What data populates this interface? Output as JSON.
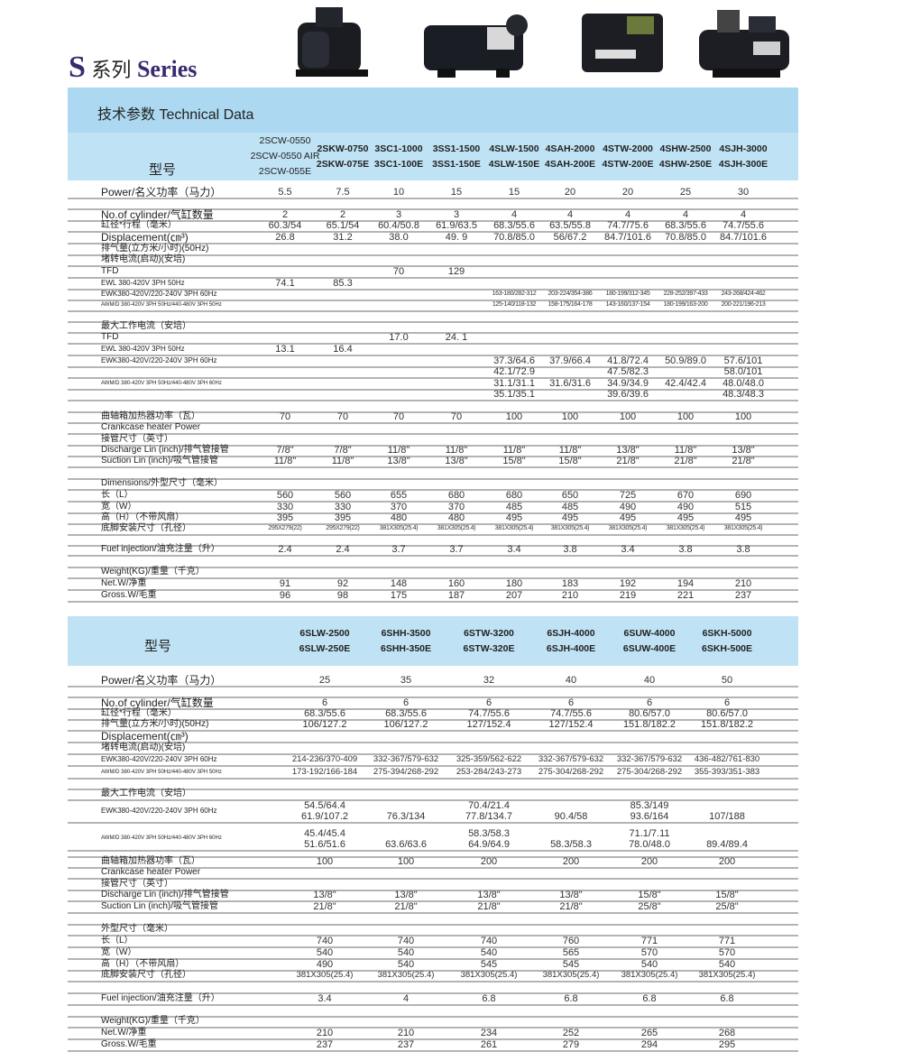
{
  "header": {
    "series_letter": "S",
    "series_cn": "系列",
    "series_en": "Series",
    "tech_data": "技术参数  Technical Data"
  },
  "images": [
    "compressor-1",
    "compressor-2",
    "compressor-3",
    "compressor-4"
  ],
  "colors": {
    "band": "#acd9f1",
    "title": "#3a2a6e"
  },
  "table1": {
    "model_label": "型号",
    "models": [
      "2SCW-0550\n2SCW-0550 AIR\n2SCW-055E",
      "2SKW-0750\n2SKW-075E",
      "3SC1-1000\n3SC1-100E",
      "3SS1-1500\n3SS1-150E",
      "4SLW-1500\n4SLW-150E",
      "4SAH-2000\n4SAH-200E",
      "4STW-2000\n4STW-200E",
      "4SHW-2500\n4SHW-250E",
      "4SJH-3000\n4SJH-300E"
    ],
    "rows": [
      {
        "label": "Power/名义功率（马力）",
        "values": [
          "5.5",
          "7.5",
          "10",
          "15",
          "15",
          "20",
          "20",
          "25",
          "30"
        ]
      },
      {
        "label": "",
        "values": []
      },
      {
        "label": "No.of cylinder/气缸数量",
        "values": [
          "2",
          "2",
          "3",
          "3",
          "4",
          "4",
          "4",
          "4",
          "4"
        ]
      },
      {
        "label": "缸径*行程（毫米）",
        "values": [
          "60.3/54",
          "65.1/54",
          "60.4/50.8",
          "61.9/63.5",
          "68.3/55.6",
          "63.5/55.8",
          "74.7/75.6",
          "68.3/55.6",
          "74.7/55.6"
        ]
      },
      {
        "label": "Displacement(㎝³)",
        "values": [
          "26.8",
          "31.2",
          "38.0",
          "49. 9",
          "70.8/85.0",
          "56/67.2",
          "84.7/101.6",
          "70.8/85.0",
          "84.7/101.6"
        ]
      },
      {
        "label": "排气量(立方米/小时)(50Hz)",
        "values": []
      },
      {
        "label": "堵转电流(启动)(安培)",
        "values": []
      },
      {
        "label": "TFD",
        "values": [
          "",
          "",
          "70",
          "129"
        ]
      },
      {
        "label": "EWL 380-420V 3PH 50Hz",
        "values": [
          "74.1",
          "85.3"
        ]
      },
      {
        "label": "EWK380-420V/220-240V 3PH 60Hz",
        "values": [
          "",
          "",
          "",
          "",
          "163-180/282-312",
          "203-224/354-386",
          "180-199/312-345",
          "228-252/397-433",
          "243-268/424-462"
        ]
      },
      {
        "label": "AWM/D 380-420V 3PH 50Hz/440-480V 3PH 50Hz",
        "values": [
          "",
          "",
          "",
          "",
          "125-140/118-132",
          "158-175/164-178",
          "143-160/137-154",
          "180-199/163-200",
          "200-221/196-213"
        ]
      },
      {
        "label": "",
        "values": []
      },
      {
        "label": "最大工作电流（安培）",
        "values": []
      },
      {
        "label": "TFD",
        "values": [
          "",
          "",
          "17.0",
          "24. 1"
        ]
      },
      {
        "label": "EWL 380-420V 3PH 50Hz",
        "values": [
          "13.1",
          "16.4"
        ]
      },
      {
        "label": "EWK380-420V/220-240V 3PH 60Hz",
        "values": [
          "",
          "",
          "",
          "",
          "37.3/64.6",
          "37.9/66.4",
          "41.8/72.4",
          "50.9/89.0",
          "57.6/101"
        ]
      },
      {
        "label": "",
        "values": [
          "",
          "",
          "",
          "",
          "42.1/72.9",
          "",
          "47.5/82.3",
          "",
          "58.0/101"
        ]
      },
      {
        "label": "AWM/D 380-420V 3PH 50Hz/440-480V 3PH 60Hz",
        "values": [
          "",
          "",
          "",
          "",
          "31.1/31.1",
          "31.6/31.6",
          "34.9/34.9",
          "42.4/42.4",
          "48.0/48.0"
        ]
      },
      {
        "label": "",
        "values": [
          "",
          "",
          "",
          "",
          "35.1/35.1",
          "",
          "39.6/39.6",
          "",
          "48.3/48.3"
        ]
      },
      {
        "label": "",
        "values": []
      },
      {
        "label": "曲轴箱加热器功率（瓦）",
        "values": [
          "70",
          "70",
          "70",
          "70",
          "100",
          "100",
          "100",
          "100",
          "100"
        ]
      },
      {
        "label": "Crankcase heater Power",
        "values": []
      },
      {
        "label": "接管尺寸（英寸）",
        "values": []
      },
      {
        "label": "Discharge Lin (inch)/排气管接管",
        "values": [
          "7/8\"",
          "7/8\"",
          "11/8\"",
          "11/8\"",
          "11/8\"",
          "11/8\"",
          "13/8\"",
          "11/8\"",
          "13/8\""
        ]
      },
      {
        "label": "Suction Lin (inch)/吸气管接管",
        "values": [
          "11/8\"",
          "11/8\"",
          "13/8\"",
          "13/8\"",
          "15/8\"",
          "15/8\"",
          "21/8\"",
          "21/8\"",
          "21/8\""
        ]
      },
      {
        "label": "",
        "values": []
      },
      {
        "label": "Dimensions/外型尺寸（毫米）",
        "values": []
      },
      {
        "label": "长（L）",
        "values": [
          "560",
          "560",
          "655",
          "680",
          "680",
          "650",
          "725",
          "670",
          "690"
        ]
      },
      {
        "label": "宽（W）",
        "values": [
          "330",
          "330",
          "370",
          "370",
          "485",
          "485",
          "490",
          "490",
          "515"
        ]
      },
      {
        "label": "高（H）（不带风扇）",
        "values": [
          "395",
          "395",
          "480",
          "480",
          "495",
          "495",
          "495",
          "495",
          "495"
        ]
      },
      {
        "label": "底脚安装尺寸（孔径）",
        "values": [
          "295X279(22)",
          "295X279(22)",
          "381X305(25.4)",
          "381X305(25.4)",
          "381X305(25.4)",
          "381X305(25.4)",
          "381X305(25.4)",
          "381X305(25.4)",
          "381X305(25.4)"
        ]
      },
      {
        "label": "",
        "values": []
      },
      {
        "label": "Fuel injection/油充注量（升）",
        "values": [
          "2.4",
          "2.4",
          "3.7",
          "3.7",
          "3.4",
          "3.8",
          "3.4",
          "3.8",
          "3.8"
        ]
      },
      {
        "label": "",
        "values": []
      },
      {
        "label": "Weight(KG)/重量（千克）",
        "values": []
      },
      {
        "label": "Net.W/净重",
        "values": [
          "91",
          "92",
          "148",
          "160",
          "180",
          "183",
          "192",
          "194",
          "210"
        ]
      },
      {
        "label": "Gross.W/毛重",
        "values": [
          "96",
          "98",
          "175",
          "187",
          "207",
          "210",
          "219",
          "221",
          "237"
        ]
      }
    ]
  },
  "table2": {
    "model_label": "型号",
    "models": [
      "6SLW-2500\n6SLW-250E",
      "6SHH-3500\n6SHH-350E",
      "6STW-3200\n6STW-320E",
      "6SJH-4000\n6SJH-400E",
      "6SUW-4000\n6SUW-400E",
      "6SKH-5000\n6SKH-500E"
    ],
    "rows": [
      {
        "label": "Power/名义功率（马力）",
        "values": [
          "25",
          "35",
          "32",
          "40",
          "40",
          "50"
        ]
      },
      {
        "label": "",
        "values": []
      },
      {
        "label": "No.of cylinder/气缸数量",
        "values": [
          "6",
          "6",
          "6",
          "6",
          "6",
          "6"
        ]
      },
      {
        "label": "缸径*行程（毫米）",
        "values": [
          "68.3/55.6",
          "68.3/55.6",
          "74.7/55.6",
          "74.7/55.6",
          "80.6/57.0",
          "80.6/57.0"
        ]
      },
      {
        "label": "排气量(立方米/小时)(50Hz)",
        "values": [
          "106/127.2",
          "106/127.2",
          "127/152.4",
          "127/152.4",
          "151.8/182.2",
          "151.8/182.2"
        ]
      },
      {
        "label": "Displacement(㎝³)",
        "values": []
      },
      {
        "label": "堵转电流(启动)(安培)",
        "values": []
      },
      {
        "label": "EWK380-420V/220-240V 3PH 60Hz",
        "values": [
          "214-236/370-409",
          "332-367/579-632",
          "325-359/562-622",
          "332-367/579-632",
          "332-367/579-632",
          "436-482/761-830"
        ]
      },
      {
        "label": "AWM/D 380-420V 3PH 50Hz/440-480V 3PH 50Hz",
        "values": [
          "173-192/166-184",
          "275-394/268-292",
          "253-284/243-273",
          "275-304/268-292",
          "275-304/268-292",
          "355-393/351-383"
        ]
      },
      {
        "label": "",
        "values": []
      },
      {
        "label": "最大工作电流（安培）",
        "values": []
      },
      {
        "label": "EWK380-420V/220-240V 3PH 60Hz",
        "values": [
          "54.5/64.4\n61.9/107.2",
          "76.3/134\n",
          "70.4/21.4\n77.8/134.7",
          "90.4/58\n",
          "85.3/149\n93.6/164",
          "107/188\n"
        ]
      },
      {
        "label": "AWM/D 380-420V 3PH 50Hz/440-480V 3PH 60Hz",
        "values": [
          "45.4/45.4\n51.6/51.6",
          "63.6/63.6\n",
          "58.3/58.3\n64.9/64.9",
          "58.3/58.3\n",
          "71.1/7.11\n78.0/48.0",
          "89.4/89.4\n"
        ]
      },
      {
        "label": "",
        "values": []
      },
      {
        "label": "曲轴箱加热器功率（瓦）",
        "values": [
          "100",
          "100",
          "200",
          "200",
          "200",
          "200"
        ]
      },
      {
        "label": "Crankcase heater Power",
        "values": []
      },
      {
        "label": "接管尺寸（英寸）",
        "values": []
      },
      {
        "label": "Discharge Lin (inch)/排气管接管",
        "values": [
          "13/8\"",
          "13/8\"",
          "13/8\"",
          "13/8\"",
          "15/8\"",
          "15/8\""
        ]
      },
      {
        "label": "Suction Lin (inch)/吸气管接管",
        "values": [
          "21/8\"",
          "21/8\"",
          "21/8\"",
          "21/8\"",
          "25/8\"",
          "25/8\""
        ]
      },
      {
        "label": "",
        "values": []
      },
      {
        "label": "外型尺寸（毫米）",
        "values": []
      },
      {
        "label": "长（L）",
        "values": [
          "740",
          "740",
          "740",
          "760",
          "771",
          "771"
        ]
      },
      {
        "label": "宽（W）",
        "values": [
          "540",
          "540",
          "540",
          "565",
          "570",
          "570"
        ]
      },
      {
        "label": "高（H）（不带风扇）",
        "values": [
          "490",
          "540",
          "545",
          "545",
          "540",
          "540"
        ]
      },
      {
        "label": "底脚安装尺寸（孔径）",
        "values": [
          "381X305(25.4)",
          "381X305(25.4)",
          "381X305(25.4)",
          "381X305(25.4)",
          "381X305(25.4)",
          "381X305(25.4)"
        ]
      },
      {
        "label": "",
        "values": []
      },
      {
        "label": "Fuel injection/油充注量（升）",
        "values": [
          "3.4",
          "4",
          "6.8",
          "6.8",
          "6.8",
          "6.8"
        ]
      },
      {
        "label": "",
        "values": []
      },
      {
        "label": "Weight(KG)/重量（千克）",
        "values": []
      },
      {
        "label": "Net.W/净重",
        "values": [
          "210",
          "210",
          "234",
          "252",
          "265",
          "268"
        ]
      },
      {
        "label": "Gross.W/毛重",
        "values": [
          "237",
          "237",
          "261",
          "279",
          "294",
          "295"
        ]
      }
    ]
  }
}
